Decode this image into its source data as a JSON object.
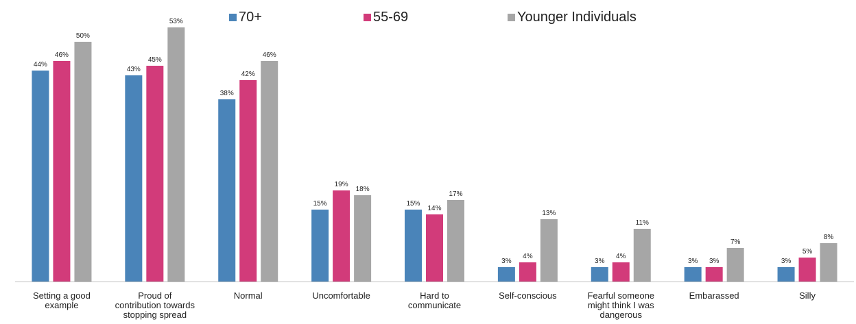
{
  "chart_data": {
    "type": "bar",
    "categories": [
      [
        "Setting a good",
        "example"
      ],
      [
        "Proud of",
        "contribution towards",
        "stopping spread"
      ],
      [
        "Normal"
      ],
      [
        "Uncomfortable"
      ],
      [
        "Hard to",
        "communicate"
      ],
      [
        "Self-conscious"
      ],
      [
        "Fearful someone",
        "might think I was",
        "dangerous"
      ],
      [
        "Embarassed"
      ],
      [
        "Silly"
      ]
    ],
    "series": [
      {
        "name": "70+",
        "color": "#4a84b9",
        "values": [
          44,
          43,
          38,
          15,
          15,
          3,
          3,
          3,
          3
        ]
      },
      {
        "name": "55-69",
        "color": "#d23b7a",
        "values": [
          46,
          45,
          42,
          19,
          14,
          4,
          4,
          3,
          5
        ]
      },
      {
        "name": "Younger Individuals",
        "color": "#a6a6a6",
        "values": [
          50,
          53,
          46,
          18,
          17,
          13,
          11,
          7,
          8
        ]
      }
    ],
    "value_suffix": "%",
    "title": "",
    "xlabel": "",
    "ylabel": "",
    "ylim": [
      0,
      56
    ],
    "grid": false,
    "legend_position": "top"
  }
}
